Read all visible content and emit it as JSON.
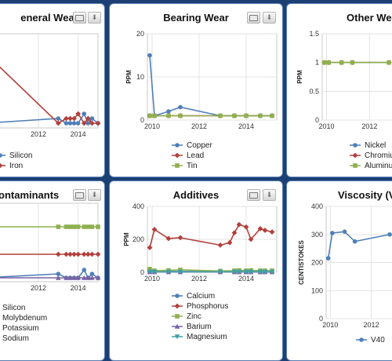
{
  "colors": {
    "blue": "#4f7fb8",
    "red": "#b2403c",
    "green": "#8fb050",
    "purple": "#7a62a6",
    "teal": "#3fa0a8"
  },
  "panels": [
    {
      "title": "eneral Wear"
    },
    {
      "title": "Bearing Wear"
    },
    {
      "title": "Other Wea"
    },
    {
      "title": "ontaminants"
    },
    {
      "title": "Additives"
    },
    {
      "title": "Viscosity (V"
    }
  ],
  "chart_data": [
    {
      "type": "line",
      "title": "eneral Wear",
      "ylabel": "",
      "xlabel": "",
      "xlim": [
        2009.0,
        2015.0
      ],
      "ylim": [
        0,
        20
      ],
      "xticks": [
        2012,
        2014
      ],
      "yticks": [],
      "series": [
        {
          "name": "Silicon",
          "color": "blue",
          "x": [
            2009.3,
            2013.0,
            2013.4,
            2013.6,
            2013.8,
            2014.0,
            2014.3,
            2014.5,
            2014.7,
            2015.0
          ],
          "y": [
            1,
            2,
            1,
            1,
            1,
            1,
            3,
            1,
            2,
            1
          ]
        },
        {
          "name": "Iron",
          "color": "red",
          "x": [
            2009.3,
            2013.0,
            2013.4,
            2013.6,
            2013.8,
            2014.0,
            2014.3,
            2014.5,
            2014.7,
            2015.0
          ],
          "y": [
            16,
            1,
            2,
            2,
            2,
            3,
            1,
            2,
            1,
            1
          ]
        }
      ]
    },
    {
      "type": "line",
      "title": "Bearing Wear",
      "ylabel": "PPM",
      "xlabel": "",
      "xlim": [
        2009.8,
        2015.3
      ],
      "ylim": [
        0,
        20
      ],
      "xticks": [
        2010,
        2012,
        2014
      ],
      "yticks": [
        0,
        10,
        20
      ],
      "series": [
        {
          "name": "Copper",
          "color": "blue",
          "x": [
            2009.9,
            2010.1,
            2010.7,
            2011.2,
            2012.9,
            2013.5,
            2014.0,
            2014.6,
            2015.1
          ],
          "y": [
            15,
            1,
            2,
            3,
            1,
            1,
            1,
            1,
            1
          ]
        },
        {
          "name": "Lead",
          "color": "red",
          "x": [
            2009.9,
            2010.1,
            2010.7,
            2011.2,
            2012.9,
            2013.5,
            2014.0,
            2014.6,
            2015.1
          ],
          "y": [
            1,
            1,
            1,
            1,
            1,
            1,
            1,
            1,
            1
          ]
        },
        {
          "name": "Tin",
          "color": "green",
          "x": [
            2009.9,
            2010.1,
            2010.7,
            2011.2,
            2012.9,
            2013.5,
            2014.0,
            2014.6,
            2015.1
          ],
          "y": [
            1,
            1,
            1,
            1,
            1,
            1,
            1,
            1,
            1
          ]
        }
      ]
    },
    {
      "type": "line",
      "title": "Other Wea",
      "ylabel": "PPM",
      "xlabel": "",
      "xlim": [
        2009.8,
        2013.7
      ],
      "ylim": [
        0,
        1.5
      ],
      "xticks": [
        2010,
        2012
      ],
      "yticks": [
        0,
        0.5,
        1,
        1.5
      ],
      "series": [
        {
          "name": "Nickel",
          "color": "blue",
          "x": [
            2009.9,
            2010.1,
            2010.7,
            2011.2,
            2012.9
          ],
          "y": [
            1,
            1,
            1,
            1,
            1
          ]
        },
        {
          "name": "Chromiu",
          "color": "red",
          "x": [
            2009.9,
            2010.1,
            2010.7,
            2011.2,
            2012.9
          ],
          "y": [
            1,
            1,
            1,
            1,
            1
          ]
        },
        {
          "name": "Aluminu",
          "color": "green",
          "x": [
            2009.9,
            2010.1,
            2010.7,
            2011.2,
            2012.9
          ],
          "y": [
            1,
            1,
            1,
            1,
            1
          ]
        }
      ]
    },
    {
      "type": "line",
      "title": "ontaminants",
      "ylabel": "",
      "xlabel": "",
      "xlim": [
        2009.0,
        2015.0
      ],
      "ylim": [
        0,
        20
      ],
      "xticks": [
        2012,
        2014
      ],
      "yticks": [],
      "series": [
        {
          "name": "Silicon",
          "color": "blue",
          "x": [
            2009.3,
            2013.0,
            2013.4,
            2013.6,
            2013.8,
            2014.0,
            2014.3,
            2014.5,
            2014.7,
            2015.0
          ],
          "y": [
            1,
            2,
            1,
            1,
            1,
            1,
            3,
            1,
            2,
            1
          ]
        },
        {
          "name": "Molybdenum",
          "color": "red",
          "x": [
            2009.3,
            2013.0,
            2013.4,
            2013.6,
            2013.8,
            2014.0,
            2014.3,
            2014.5,
            2014.7,
            2015.0
          ],
          "y": [
            7,
            7,
            7,
            7,
            7,
            7,
            7,
            7,
            7,
            7
          ]
        },
        {
          "name": "Potassium",
          "color": "green",
          "x": [
            2009.3,
            2013.0,
            2013.4,
            2013.6,
            2013.8,
            2014.0,
            2014.3,
            2014.5,
            2014.7,
            2015.0
          ],
          "y": [
            14,
            14,
            14,
            14,
            14,
            14,
            14,
            14,
            14,
            14
          ]
        },
        {
          "name": "Sodium",
          "color": "purple",
          "x": [
            2009.3,
            2013.0,
            2013.4,
            2013.6,
            2013.8,
            2014.0,
            2014.3,
            2014.5,
            2014.7,
            2015.0
          ],
          "y": [
            1,
            1,
            1,
            1,
            1,
            1,
            1,
            1,
            1,
            1
          ]
        }
      ]
    },
    {
      "type": "line",
      "title": "Additives",
      "ylabel": "PPM",
      "xlabel": "",
      "xlim": [
        2009.8,
        2015.3
      ],
      "ylim": [
        0,
        400
      ],
      "xticks": [
        2010,
        2012,
        2014
      ],
      "yticks": [
        0,
        200,
        400
      ],
      "series": [
        {
          "name": "Calcium",
          "color": "blue",
          "x": [
            2009.9,
            2010.1,
            2010.7,
            2011.2,
            2012.9,
            2013.5,
            2013.7,
            2014.0,
            2014.2,
            2014.6,
            2014.8,
            2015.1
          ],
          "y": [
            5,
            5,
            5,
            5,
            5,
            5,
            5,
            5,
            5,
            5,
            5,
            5
          ]
        },
        {
          "name": "Phosphorus",
          "color": "red",
          "x": [
            2009.9,
            2010.1,
            2010.7,
            2011.2,
            2012.9,
            2013.3,
            2013.5,
            2013.7,
            2014.0,
            2014.2,
            2014.6,
            2014.8,
            2015.1
          ],
          "y": [
            150,
            260,
            205,
            210,
            165,
            180,
            240,
            290,
            275,
            200,
            265,
            255,
            245
          ]
        },
        {
          "name": "Zinc",
          "color": "green",
          "x": [
            2009.9,
            2010.1,
            2010.7,
            2011.2,
            2012.9,
            2013.5,
            2013.7,
            2014.0,
            2014.2,
            2014.6,
            2014.8,
            2015.1
          ],
          "y": [
            20,
            10,
            12,
            15,
            8,
            10,
            12,
            10,
            12,
            10,
            10,
            10
          ]
        },
        {
          "name": "Barium",
          "color": "purple",
          "x": [
            2009.9,
            2010.1,
            2010.7,
            2011.2,
            2012.9,
            2013.5,
            2013.7,
            2014.0,
            2014.2,
            2014.6,
            2014.8,
            2015.1
          ],
          "y": [
            2,
            2,
            2,
            2,
            2,
            2,
            2,
            2,
            2,
            2,
            2,
            2
          ]
        },
        {
          "name": "Magnesium",
          "color": "teal",
          "x": [
            2009.9,
            2010.1,
            2010.7,
            2011.2,
            2012.9,
            2013.5,
            2013.7,
            2014.0,
            2014.2,
            2014.6,
            2014.8,
            2015.1
          ],
          "y": [
            3,
            3,
            3,
            3,
            3,
            3,
            3,
            3,
            3,
            3,
            3,
            3
          ]
        }
      ]
    },
    {
      "type": "line",
      "title": "Viscosity (V",
      "ylabel": "CENTISTOKES",
      "xlabel": "",
      "xlim": [
        2009.8,
        2013.7
      ],
      "ylim": [
        0,
        400
      ],
      "xticks": [
        2010,
        2012
      ],
      "yticks": [
        0,
        100,
        200,
        300,
        400
      ],
      "series": [
        {
          "name": "V40",
          "color": "blue",
          "x": [
            2009.9,
            2010.1,
            2010.7,
            2011.2,
            2012.9
          ],
          "y": [
            215,
            305,
            310,
            275,
            300
          ]
        }
      ]
    }
  ]
}
